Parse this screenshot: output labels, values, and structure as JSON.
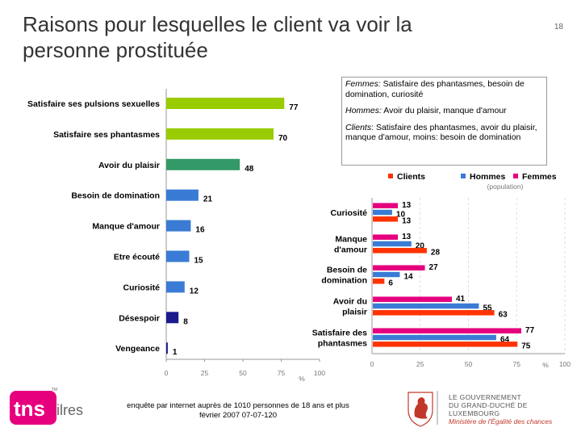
{
  "title": "Raisons pour lesquelles le client va voir la personne prostituée",
  "page_number": "18",
  "annotation": {
    "femmes_label": "Femmes:",
    "femmes_text": " Satisfaire des phantasmes, besoin de domination, curiosité",
    "hommes_label": "Hommes:",
    "hommes_text": " Avoir du plaisir, manque d'amour",
    "clients_label": "Clients",
    "clients_text": ": Satisfaire des phantasmes, avoir du plaisir, manque d'amour, moins: besoin de domination"
  },
  "footer": {
    "line1": "enquête par internet auprès de 1010 personnes de 18 ans et plus",
    "line2": "février 2007     07-07-120"
  },
  "logos": {
    "tns_text": "tns",
    "tns_suffix": "ilres",
    "tns_tm": "TM",
    "gov_line1": "LE GOUVERNEMENT",
    "gov_line2": "DU GRAND-DUCHÉ DE LUXEMBOURG",
    "gov_line3": "Ministère de l'Égalité des chances"
  },
  "chart_data": [
    {
      "type": "bar",
      "orientation": "horizontal",
      "categories": [
        "Satisfaire ses pulsions sexuelles",
        "Satisfaire ses phantasmes",
        "Avoir du plaisir",
        "Besoin de domination",
        "Manque d'amour",
        "Etre écouté",
        "Curiosité",
        "Désespoir",
        "Vengeance"
      ],
      "values": [
        77,
        70,
        48,
        21,
        16,
        15,
        12,
        8,
        1
      ],
      "bar_colors": [
        "#99cc00",
        "#99cc00",
        "#339966",
        "#3a7bd5",
        "#3a7bd5",
        "#3a7bd5",
        "#3a7bd5",
        "#1a1a8c",
        "#1a1a8c"
      ],
      "xlim": [
        0,
        100
      ],
      "xticks": [
        "0",
        "25",
        "50",
        "75",
        "100"
      ],
      "xunit": "%"
    },
    {
      "type": "bar",
      "orientation": "horizontal",
      "categories": [
        "Curiosité",
        "Manque d'amour",
        "Besoin de domination",
        "Avoir du plaisir",
        "Satisfaire des phantasmes"
      ],
      "series": [
        {
          "name": "Femmes",
          "color": "#e6007e",
          "values": [
            13,
            13,
            27,
            41,
            77
          ]
        },
        {
          "name": "Hommes",
          "color": "#3a7bd5",
          "values": [
            10,
            20,
            14,
            55,
            64
          ]
        },
        {
          "name": "Clients",
          "color": "#ff3300",
          "values": [
            13,
            28,
            6,
            63,
            75
          ]
        }
      ],
      "legend": [
        "Clients",
        "Hommes",
        "Femmes"
      ],
      "legend_note": "(population)",
      "xlim": [
        0,
        100
      ],
      "xticks": [
        "0",
        "25",
        "50",
        "75",
        "100"
      ],
      "xunit": "%"
    }
  ]
}
